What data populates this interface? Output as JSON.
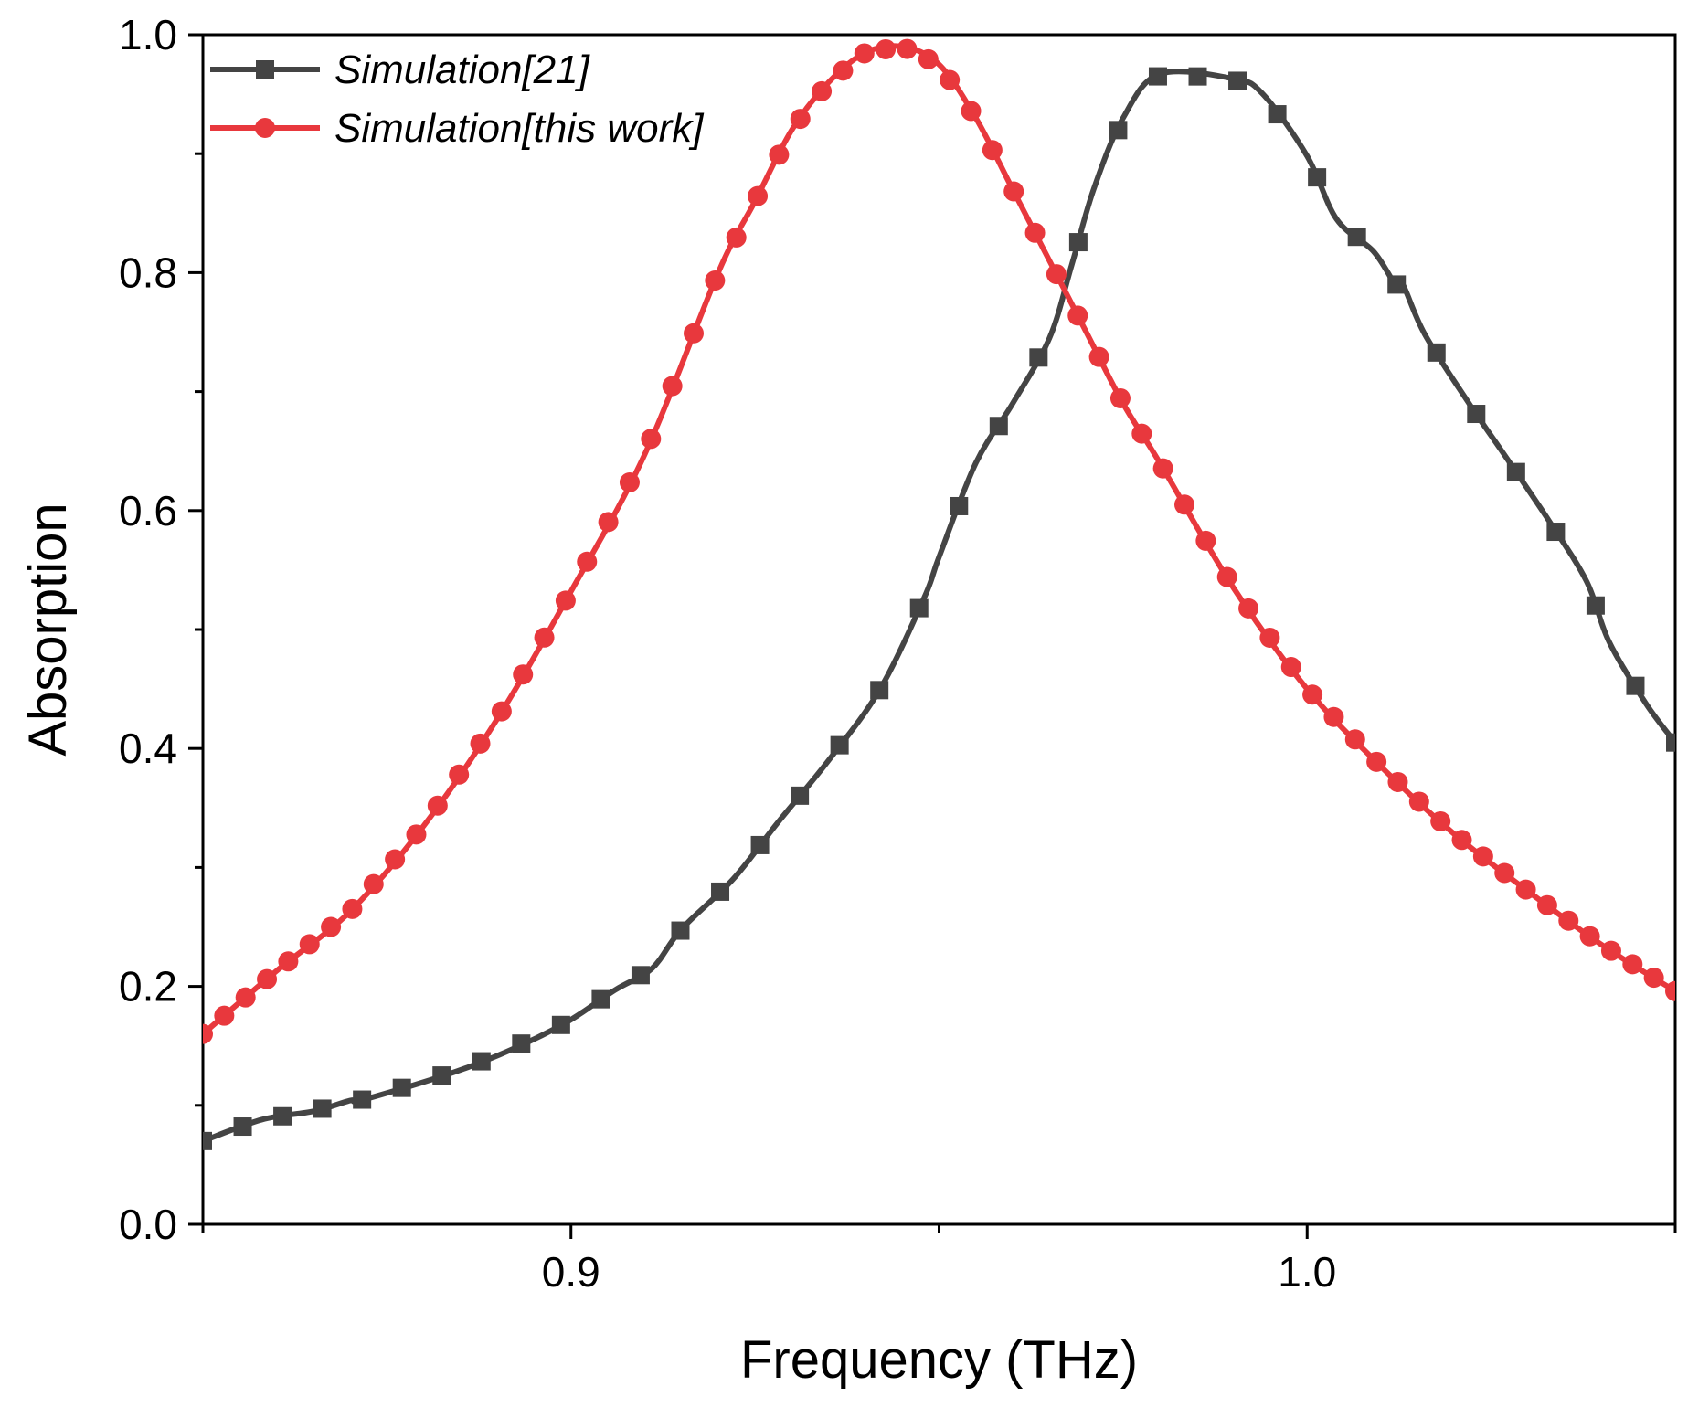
{
  "chart_data": {
    "type": "line",
    "title": "",
    "xlabel": "Frequency (THz)",
    "ylabel": "Absorption",
    "xlim": [
      0.85,
      1.05
    ],
    "ylim": [
      0.0,
      1.0
    ],
    "x_major_ticks": [
      0.9,
      1.0
    ],
    "x_minor_ticks": [
      0.85,
      0.95,
      1.05
    ],
    "x_tick_labels": [
      "0.9",
      "1.0"
    ],
    "y_major_ticks": [
      0.0,
      0.2,
      0.4,
      0.6,
      0.8,
      1.0
    ],
    "y_minor_ticks": [
      0.1,
      0.3,
      0.5,
      0.7,
      0.9
    ],
    "y_tick_labels": [
      "0.0",
      "0.2",
      "0.4",
      "0.6",
      "0.8",
      "1.0"
    ],
    "grid": false,
    "legend_position": "top-left",
    "series": [
      {
        "name": "Simulation[21]",
        "color": "#444444",
        "marker": "square",
        "x": [
          0.85,
          0.858,
          0.865,
          0.872,
          0.87,
          0.886,
          0.898,
          0.906,
          0.911,
          0.915,
          0.922,
          0.928,
          0.935,
          0.942,
          0.948,
          0.95,
          0.955,
          0.96,
          0.965,
          0.968,
          0.971,
          0.975,
          0.98,
          0.99,
          0.994,
          1.0,
          1.004,
          1.009,
          1.012,
          1.013,
          1.016,
          1.022,
          1.027,
          1.033,
          1.038,
          1.041,
          1.046,
          1.05
        ],
        "values": [
          0.07,
          0.088,
          0.095,
          0.105,
          0.104,
          0.132,
          0.165,
          0.197,
          0.215,
          0.248,
          0.29,
          0.337,
          0.39,
          0.45,
          0.527,
          0.561,
          0.64,
          0.69,
          0.745,
          0.806,
          0.87,
          0.93,
          0.967,
          0.963,
          0.95,
          0.898,
          0.845,
          0.818,
          0.79,
          0.79,
          0.748,
          0.69,
          0.645,
          0.59,
          0.54,
          0.49,
          0.438,
          0.405
        ]
      },
      {
        "name": "Simulation[this work]",
        "color": "#e8383d",
        "marker": "circle",
        "x": [
          0.85,
          0.86,
          0.87,
          0.88,
          0.89,
          0.9,
          0.91,
          0.92,
          0.925,
          0.93,
          0.935,
          0.94,
          0.945,
          0.95,
          0.955,
          0.96,
          0.965,
          0.97,
          0.975,
          0.98,
          0.99,
          1.0,
          1.01,
          1.02,
          1.03,
          1.04,
          1.05
        ],
        "values": [
          0.16,
          0.213,
          0.263,
          0.335,
          0.425,
          0.532,
          0.647,
          0.8,
          0.86,
          0.92,
          0.96,
          0.985,
          0.99,
          0.975,
          0.93,
          0.87,
          0.81,
          0.75,
          0.69,
          0.64,
          0.535,
          0.45,
          0.385,
          0.328,
          0.28,
          0.235,
          0.196
        ]
      }
    ]
  }
}
